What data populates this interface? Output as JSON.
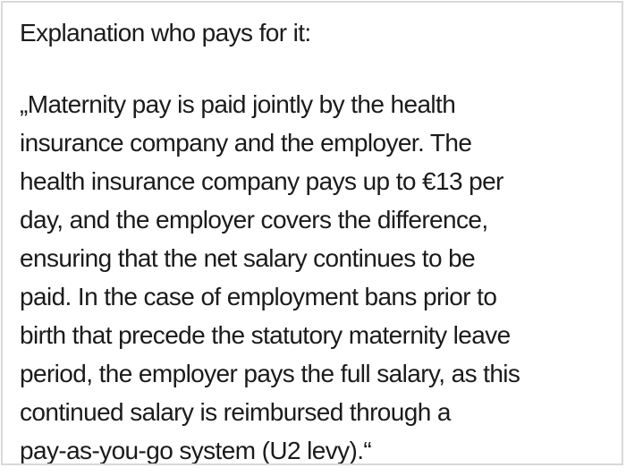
{
  "heading": "Explanation who pays for it:",
  "paragraph": {
    "lines": [
      "„Maternity pay is paid jointly by the health",
      "insurance company and the employer. The",
      "health insurance company pays up to €13 per",
      "day, and the employer covers the difference,",
      "ensuring that the net salary continues to be",
      "paid. In the case of employment bans prior to",
      "birth that precede the statutory maternity leave",
      "period, the employer pays the full salary, as this",
      "continued salary is reimbursed through a",
      "pay-as-you-go system (U2 levy).“"
    ]
  },
  "colors": {
    "text": "#1b1b1b",
    "border": "#d9d9d9",
    "background": "#ffffff"
  }
}
